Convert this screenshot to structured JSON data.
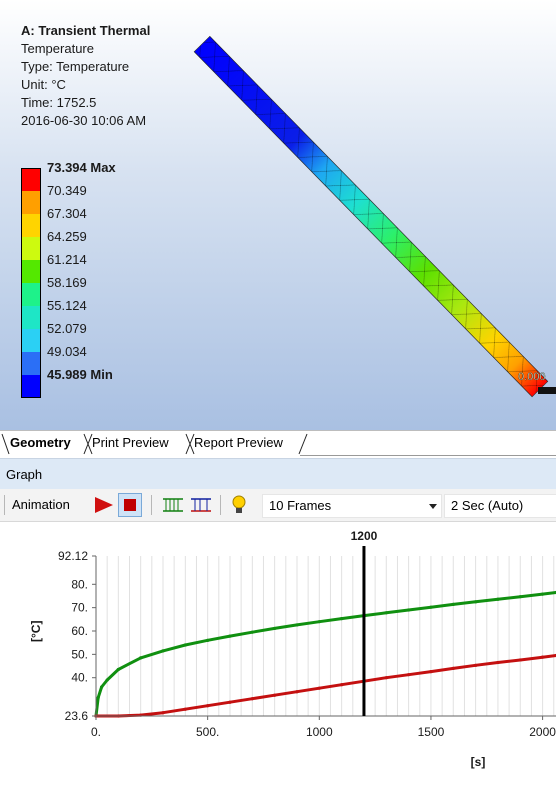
{
  "app": {
    "info": {
      "title": "A: Transient Thermal",
      "line1": "Temperature",
      "line2": "Type: Temperature",
      "line3": "Unit: °C",
      "line4": "Time: 1752.5",
      "line5": "2016-06-30 10:06 AM"
    },
    "legend": [
      {
        "label": "73.394 Max",
        "color": "#ff0000",
        "bold": true
      },
      {
        "label": "70.349",
        "color": "#ff9f00"
      },
      {
        "label": "67.304",
        "color": "#ffd400"
      },
      {
        "label": "64.259",
        "color": "#cdfa0f"
      },
      {
        "label": "61.214",
        "color": "#54e800"
      },
      {
        "label": "58.169",
        "color": "#1ef28a"
      },
      {
        "label": "55.124",
        "color": "#1ee6c6"
      },
      {
        "label": "52.079",
        "color": "#2bd0f4"
      },
      {
        "label": "49.034",
        "color": "#2b6ff6"
      },
      {
        "label": "45.989 Min",
        "color": "#0000ff",
        "bold": true
      }
    ],
    "probe_label": "0.000"
  },
  "tabs": {
    "geometry": "Geometry",
    "print_preview": "Print Preview",
    "report_preview": "Report Preview"
  },
  "graph": {
    "title": "Graph",
    "toolbar": {
      "animation_label": "Animation",
      "frames_value": "10 Frames",
      "speed_value": "2 Sec (Auto)"
    }
  },
  "chart_data": {
    "type": "line",
    "ylabel": "[°C]",
    "xlabel": "[s]",
    "xlim": [
      0,
      2060
    ],
    "ylim": [
      23.6,
      92.12
    ],
    "xticks": [
      "0.",
      "500.",
      "1000",
      "1500",
      "2000"
    ],
    "xtick_values": [
      0,
      500,
      1000,
      1500,
      2000
    ],
    "yticks": [
      "92.12",
      "80.",
      "70.",
      "60.",
      "50.",
      "40.",
      "23.6"
    ],
    "ytick_values": [
      92.12,
      80,
      70,
      60,
      50,
      40,
      23.6
    ],
    "cursor": {
      "x": 1200,
      "label": "1200"
    },
    "series": [
      {
        "color": "#109010",
        "x": [
          0,
          10,
          25,
          50,
          100,
          200,
          300,
          400,
          500,
          600,
          700,
          800,
          900,
          1000,
          1100,
          1200,
          1300,
          1400,
          1500,
          1600,
          1700,
          1800,
          1900,
          2000,
          2060
        ],
        "values": [
          23.6,
          31.5,
          36.0,
          39.0,
          43.5,
          48.5,
          51.5,
          54.0,
          56.0,
          57.8,
          59.5,
          61.1,
          62.6,
          64.0,
          65.3,
          66.6,
          67.8,
          69.0,
          70.2,
          71.4,
          72.5,
          73.6,
          74.7,
          75.8,
          76.5
        ]
      },
      {
        "color": "#c41010",
        "x": [
          0,
          100,
          200,
          300,
          400,
          500,
          600,
          700,
          800,
          900,
          1000,
          1100,
          1200,
          1300,
          1400,
          1500,
          1600,
          1700,
          1800,
          1900,
          2000,
          2060
        ],
        "values": [
          23.6,
          23.6,
          24.0,
          25.0,
          26.5,
          28.0,
          29.5,
          31.0,
          32.5,
          34.0,
          35.5,
          37.0,
          38.5,
          40.0,
          41.3,
          42.6,
          44.0,
          45.3,
          46.5,
          47.6,
          48.8,
          49.5
        ]
      }
    ]
  }
}
